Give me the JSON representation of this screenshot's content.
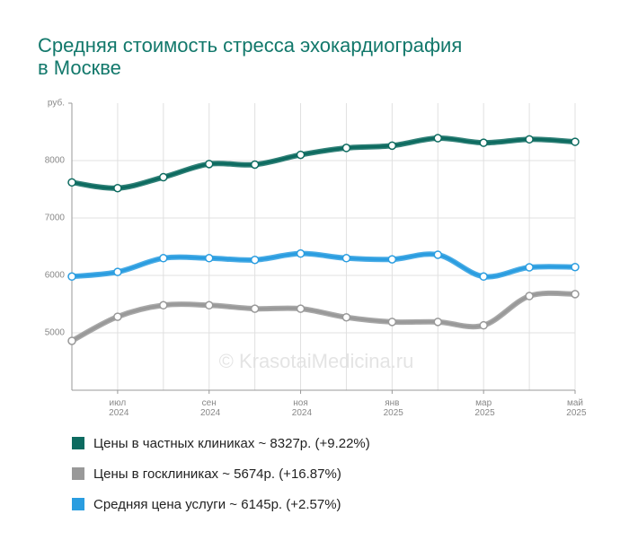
{
  "chart_data": {
    "type": "line",
    "title": [
      "Средняя стоимость стресса эхокардиография",
      "в Москве"
    ],
    "watermark": "© KrasotaiMedicina.ru",
    "categories": [
      null,
      "июл 2024",
      null,
      "сен 2024",
      null,
      "ноя 2024",
      null,
      "янв 2025",
      null,
      "мар 2025",
      null,
      "май 2025"
    ],
    "series": [
      {
        "name": "Цены в частных клиниках ~ 8327р. (+9.22%)",
        "color": "#0d6b60",
        "values": [
          7620,
          7520,
          7710,
          7940,
          7930,
          8100,
          8220,
          8260,
          8390,
          8310,
          8370,
          8327
        ]
      },
      {
        "name": "Цены в госклиниках ~ 5674р. (+16.87%)",
        "color": "#999999",
        "values": [
          4860,
          5280,
          5480,
          5480,
          5420,
          5420,
          5270,
          5190,
          5190,
          5130,
          5640,
          5674
        ]
      },
      {
        "name": "Средняя цена услуги ~ 6145р. (+2.57%)",
        "color": "#2a9de0",
        "values": [
          5980,
          6060,
          6300,
          6300,
          6270,
          6380,
          6300,
          6280,
          6360,
          5980,
          6140,
          6145
        ]
      }
    ],
    "ylim": [
      4000,
      9000
    ],
    "yticks": [
      5000,
      6000,
      7000,
      8000,
      {
        "value": 9000,
        "label": "руб."
      }
    ],
    "grid": true
  }
}
